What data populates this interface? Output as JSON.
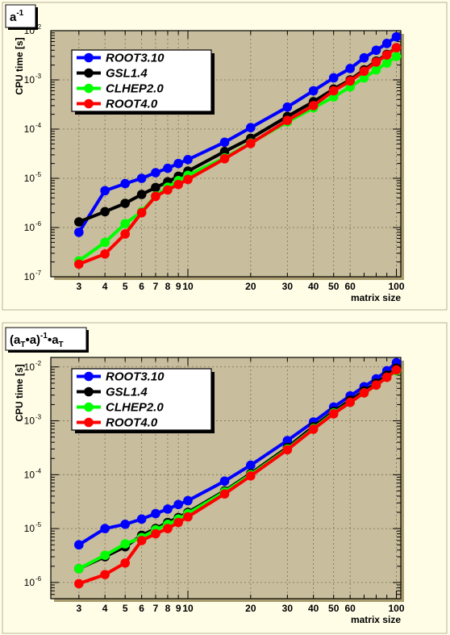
{
  "colors": {
    "ROOT3.10": "#0000ff",
    "GSL1.4": "#000000",
    "CLHEP2.0": "#00ff00",
    "ROOT4.0": "#ff0000"
  },
  "chart_data": [
    {
      "type": "line",
      "title": "a⁻¹",
      "title_parts": {
        "base": "a",
        "exp": "-1"
      },
      "xlabel": "matrix size",
      "ylabel": "CPU time [s]",
      "xscale": "log",
      "yscale": "log",
      "xlim": [
        2.2,
        105
      ],
      "ylim": [
        1e-07,
        0.01
      ],
      "grid": true,
      "legend_placement": "top-left",
      "x_tick_labels": [
        "3",
        "4",
        "5",
        "6",
        "7",
        "8",
        "9",
        "10",
        "20",
        "30",
        "40",
        "50",
        "60",
        "100"
      ],
      "y_tick_labels": [
        {
          "base": "10",
          "exp": "-7",
          "value": 1e-07
        },
        {
          "base": "10",
          "exp": "-6",
          "value": 1e-06
        },
        {
          "base": "10",
          "exp": "-5",
          "value": 1e-05
        },
        {
          "base": "10",
          "exp": "-4",
          "value": 0.0001
        },
        {
          "base": "10",
          "exp": "-3",
          "value": 0.001
        },
        {
          "base": "10",
          "exp": "-2",
          "value": 0.01
        }
      ],
      "x": [
        3,
        4,
        5,
        6,
        7,
        8,
        9,
        10,
        15,
        20,
        30,
        40,
        50,
        60,
        70,
        80,
        90,
        100
      ],
      "series": [
        {
          "name": "ROOT3.10",
          "values": [
            8e-07,
            5.6e-06,
            7.8e-06,
            1e-05,
            1.3e-05,
            1.6e-05,
            2e-05,
            2.4e-05,
            5.4e-05,
            0.000107,
            0.00028,
            0.0006,
            0.0011,
            0.0017,
            0.0028,
            0.004,
            0.0055,
            0.0075
          ]
        },
        {
          "name": "GSL1.4",
          "values": [
            1.3e-06,
            2.1e-06,
            3.1e-06,
            4.7e-06,
            6.5e-06,
            8.5e-06,
            1.1e-05,
            1.4e-05,
            3.5e-05,
            6.5e-05,
            0.00018,
            0.00036,
            0.00065,
            0.001,
            0.0016,
            0.0024,
            0.0033,
            0.0045
          ]
        },
        {
          "name": "CLHEP2.0",
          "values": [
            2.1e-07,
            5e-07,
            1.2e-06,
            2.1e-06,
            4.4e-06,
            6.6e-06,
            9e-06,
            1.15e-05,
            2.6e-05,
            5.2e-05,
            0.00014,
            0.00027,
            0.00045,
            0.00072,
            0.0011,
            0.0016,
            0.0022,
            0.003
          ]
        },
        {
          "name": "ROOT4.0",
          "values": [
            1.8e-07,
            2.9e-07,
            7.4e-07,
            2e-06,
            4.3e-06,
            5.8e-06,
            7.5e-06,
            9.5e-06,
            2.5e-05,
            5.1e-05,
            0.00015,
            0.0003,
            0.0006,
            0.00095,
            0.0015,
            0.0023,
            0.0032,
            0.0045
          ]
        }
      ]
    },
    {
      "type": "line",
      "title": "(aT•a)⁻¹•aT",
      "title_parts": {
        "open": "(a",
        "sub1": "T",
        "mid": "•a)",
        "exp": "-1",
        "dot": "•a",
        "sub2": "T"
      },
      "xlabel": "matrix size",
      "ylabel": "CPU time [s]",
      "xscale": "log",
      "yscale": "log",
      "xlim": [
        2.2,
        105
      ],
      "ylim": [
        5e-07,
        0.015
      ],
      "grid": true,
      "legend_placement": "top-left",
      "x_tick_labels": [
        "3",
        "4",
        "5",
        "6",
        "7",
        "8",
        "9",
        "10",
        "20",
        "30",
        "40",
        "50",
        "60",
        "100"
      ],
      "y_tick_labels": [
        {
          "base": "10",
          "exp": "-6",
          "value": 1e-06
        },
        {
          "base": "10",
          "exp": "-5",
          "value": 1e-05
        },
        {
          "base": "10",
          "exp": "-4",
          "value": 0.0001
        },
        {
          "base": "10",
          "exp": "-3",
          "value": 0.001
        },
        {
          "base": "10",
          "exp": "-2",
          "value": 0.01
        }
      ],
      "x": [
        3,
        4,
        5,
        6,
        7,
        8,
        9,
        10,
        15,
        20,
        30,
        40,
        50,
        60,
        70,
        80,
        90,
        100
      ],
      "series": [
        {
          "name": "ROOT3.10",
          "values": [
            5e-06,
            1e-05,
            1.2e-05,
            1.5e-05,
            1.9e-05,
            2.3e-05,
            2.8e-05,
            3.3e-05,
            7.6e-05,
            0.00015,
            0.00043,
            0.00095,
            0.0018,
            0.0029,
            0.0043,
            0.006,
            0.0085,
            0.012
          ]
        },
        {
          "name": "GSL1.4",
          "values": [
            1.8e-06,
            3e-06,
            4.6e-06,
            7.5e-06,
            1e-05,
            1.3e-05,
            1.6e-05,
            2e-05,
            5e-05,
            0.000105,
            0.00032,
            0.00078,
            0.0015,
            0.0024,
            0.0036,
            0.005,
            0.007,
            0.0095
          ]
        },
        {
          "name": "CLHEP2.0",
          "values": [
            1.8e-06,
            3.2e-06,
            5.2e-06,
            6.8e-06,
            9.5e-06,
            1.2e-05,
            1.5e-05,
            1.9e-05,
            4.8e-05,
            0.0001,
            0.0003,
            0.00072,
            0.0014,
            0.0022,
            0.0033,
            0.0046,
            0.0064,
            0.0085
          ]
        },
        {
          "name": "ROOT4.0",
          "values": [
            9.5e-07,
            1.4e-06,
            2.3e-06,
            6e-06,
            8e-06,
            1e-05,
            1.3e-05,
            1.65e-05,
            4.4e-05,
            9.5e-05,
            0.00029,
            0.0007,
            0.00135,
            0.0022,
            0.0033,
            0.0046,
            0.0064,
            0.0088
          ]
        }
      ]
    }
  ]
}
